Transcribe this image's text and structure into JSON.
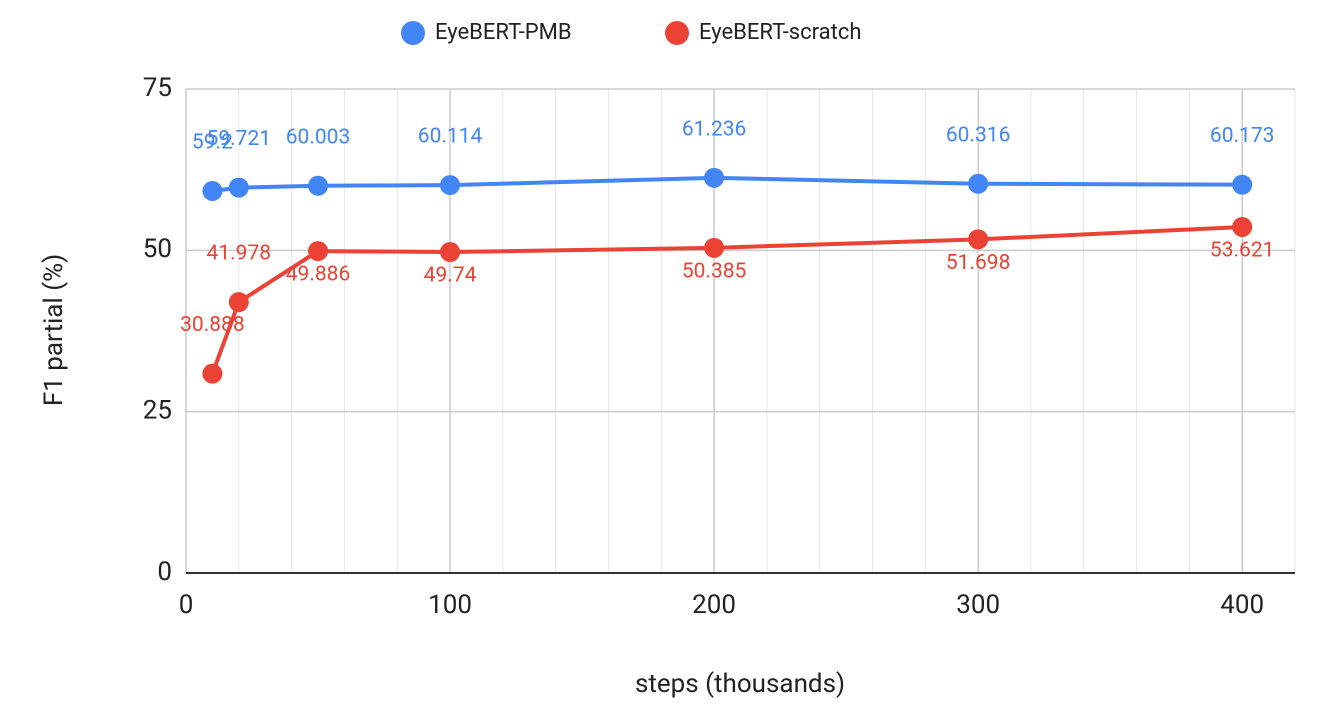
{
  "chart_data": {
    "type": "line",
    "x_label": "steps (thousands)",
    "y_label": "F1 partial (%)",
    "x": [
      10,
      20,
      50,
      100,
      200,
      300,
      400
    ],
    "series": [
      {
        "name": "EyeBERT-PMB",
        "color": "#4285f4",
        "values": [
          59.2,
          59.721,
          60.003,
          60.114,
          61.236,
          60.316,
          60.173
        ]
      },
      {
        "name": "EyeBERT-scratch",
        "color": "#ea4335",
        "values": [
          30.888,
          41.978,
          49.886,
          49.74,
          50.385,
          51.698,
          53.621
        ]
      }
    ],
    "xlim": [
      0,
      420
    ],
    "xticks": [
      0,
      100,
      200,
      300,
      400
    ],
    "xminorticks": [
      20,
      40,
      60,
      80,
      120,
      140,
      160,
      180,
      220,
      240,
      260,
      280,
      320,
      340,
      360,
      380,
      420
    ],
    "ylim": [
      0,
      75
    ],
    "yticks": [
      0,
      25,
      50,
      75
    ],
    "grid": true,
    "legend": "top"
  }
}
